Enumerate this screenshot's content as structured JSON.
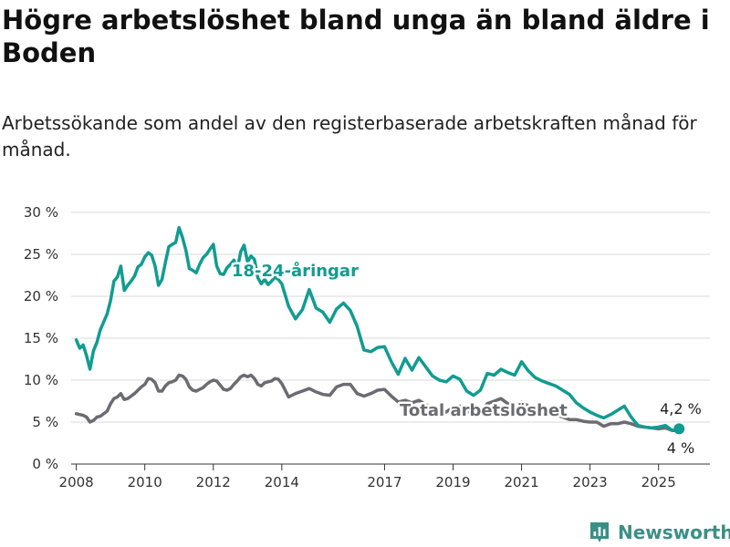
{
  "title": "Högre arbetslöshet bland unga än bland äldre i Boden",
  "subtitle": "Arbetssökande som andel av den registerbaserade arbetskraften månad för månad.",
  "logo_text": "Newsworthy",
  "colors": {
    "young": "#119c91",
    "total": "#6b6b72",
    "grid": "#d9d9d9",
    "logo": "#3a8f86"
  },
  "chart_data": {
    "type": "line",
    "title": "Högre arbetslöshet bland unga än bland äldre i Boden",
    "subtitle": "Arbetssökande som andel av den registerbaserade arbetskraften månad för månad.",
    "xlabel": "",
    "ylabel": "",
    "xlim": [
      2007.85,
      2026.5
    ],
    "ylim": [
      0,
      30
    ],
    "x_ticks": [
      2008,
      2010,
      2012,
      2014,
      2017,
      2019,
      2021,
      2023,
      2025
    ],
    "x_tick_labels": [
      "2008",
      "2010",
      "2012",
      "2014",
      "2017",
      "2019",
      "2021",
      "2023",
      "2025"
    ],
    "y_ticks": [
      0,
      5,
      10,
      15,
      20,
      25,
      30
    ],
    "y_tick_labels": [
      "0 %",
      "5 %",
      "10 %",
      "15 %",
      "20 %",
      "25 %",
      "30 %"
    ],
    "grid": "horizontal",
    "legend": "inline labels",
    "series": [
      {
        "name": "18-24-åringar",
        "x": [
          2008.0,
          2008.1,
          2008.2,
          2008.3,
          2008.4,
          2008.5,
          2008.6,
          2008.7,
          2008.9,
          2009.0,
          2009.1,
          2009.2,
          2009.3,
          2009.4,
          2009.5,
          2009.6,
          2009.7,
          2009.8,
          2009.9,
          2010.0,
          2010.1,
          2010.2,
          2010.3,
          2010.4,
          2010.5,
          2010.6,
          2010.7,
          2010.8,
          2010.9,
          2011.0,
          2011.1,
          2011.2,
          2011.3,
          2011.4,
          2011.5,
          2011.6,
          2011.7,
          2011.8,
          2011.9,
          2012.0,
          2012.1,
          2012.2,
          2012.3,
          2012.4,
          2012.5,
          2012.6,
          2012.7,
          2012.8,
          2012.9,
          2013.0,
          2013.1,
          2013.2,
          2013.3,
          2013.4,
          2013.5,
          2013.6,
          2013.7,
          2013.8,
          2013.9,
          2014.0,
          2014.2,
          2014.4,
          2014.6,
          2014.8,
          2015.0,
          2015.2,
          2015.4,
          2015.6,
          2015.8,
          2016.0,
          2016.2,
          2016.4,
          2016.6,
          2016.8,
          2017.0,
          2017.2,
          2017.4,
          2017.6,
          2017.8,
          2018.0,
          2018.2,
          2018.4,
          2018.6,
          2018.8,
          2019.0,
          2019.2,
          2019.4,
          2019.6,
          2019.8,
          2020.0,
          2020.2,
          2020.4,
          2020.6,
          2020.8,
          2021.0,
          2021.2,
          2021.4,
          2021.6,
          2021.8,
          2022.0,
          2022.2,
          2022.4,
          2022.6,
          2022.8,
          2023.0,
          2023.2,
          2023.4,
          2023.6,
          2023.8,
          2024.0,
          2024.2,
          2024.4,
          2024.6,
          2024.8,
          2025.0,
          2025.2,
          2025.4,
          2025.6
        ],
        "values": [
          14.8,
          13.8,
          14.2,
          12.9,
          11.3,
          13.5,
          14.5,
          16.0,
          17.9,
          19.5,
          21.8,
          22.3,
          23.6,
          20.7,
          21.3,
          21.8,
          22.4,
          23.5,
          23.8,
          24.7,
          25.2,
          24.9,
          23.6,
          21.3,
          22.0,
          24.0,
          25.9,
          26.2,
          26.4,
          28.2,
          27.0,
          25.5,
          23.3,
          23.1,
          22.8,
          23.8,
          24.6,
          25.0,
          25.6,
          26.2,
          23.6,
          22.7,
          22.6,
          23.4,
          23.8,
          24.3,
          23.2,
          25.3,
          26.1,
          24.1,
          24.8,
          24.4,
          22.2,
          21.5,
          22.0,
          21.4,
          21.8,
          22.3,
          22.0,
          21.5,
          18.8,
          17.3,
          18.4,
          20.8,
          18.6,
          18.1,
          16.9,
          18.5,
          19.2,
          18.3,
          16.4,
          13.6,
          13.4,
          13.9,
          14.0,
          12.2,
          10.7,
          12.6,
          11.2,
          12.7,
          11.6,
          10.5,
          10.0,
          9.8,
          10.5,
          10.1,
          8.7,
          8.2,
          8.8,
          10.8,
          10.6,
          11.3,
          10.9,
          10.6,
          12.2,
          11.1,
          10.3,
          9.9,
          9.6,
          9.3,
          8.8,
          8.3,
          7.3,
          6.7,
          6.2,
          5.8,
          5.5,
          5.9,
          6.4,
          6.9,
          5.6,
          4.6,
          4.4,
          4.3,
          4.4,
          4.6,
          4.0,
          4.2
        ]
      },
      {
        "name": "Total arbetslöshet",
        "x": [
          2008.0,
          2008.1,
          2008.2,
          2008.3,
          2008.4,
          2008.5,
          2008.6,
          2008.7,
          2008.9,
          2009.0,
          2009.1,
          2009.2,
          2009.3,
          2009.4,
          2009.5,
          2009.6,
          2009.7,
          2009.8,
          2009.9,
          2010.0,
          2010.1,
          2010.2,
          2010.3,
          2010.4,
          2010.5,
          2010.6,
          2010.7,
          2010.8,
          2010.9,
          2011.0,
          2011.1,
          2011.2,
          2011.3,
          2011.4,
          2011.5,
          2011.6,
          2011.7,
          2011.8,
          2011.9,
          2012.0,
          2012.1,
          2012.2,
          2012.3,
          2012.4,
          2012.5,
          2012.6,
          2012.7,
          2012.8,
          2012.9,
          2013.0,
          2013.1,
          2013.2,
          2013.3,
          2013.4,
          2013.5,
          2013.6,
          2013.7,
          2013.8,
          2013.9,
          2014.0,
          2014.2,
          2014.4,
          2014.6,
          2014.8,
          2015.0,
          2015.2,
          2015.4,
          2015.6,
          2015.8,
          2016.0,
          2016.2,
          2016.4,
          2016.6,
          2016.8,
          2017.0,
          2017.2,
          2017.4,
          2017.6,
          2017.8,
          2018.0,
          2018.2,
          2018.4,
          2018.6,
          2018.8,
          2019.0,
          2019.2,
          2019.4,
          2019.6,
          2019.8,
          2020.0,
          2020.2,
          2020.4,
          2020.6,
          2020.8,
          2021.0,
          2021.2,
          2021.4,
          2021.6,
          2021.8,
          2022.0,
          2022.2,
          2022.4,
          2022.6,
          2022.8,
          2023.0,
          2023.2,
          2023.4,
          2023.6,
          2023.8,
          2024.0,
          2024.2,
          2024.4,
          2024.6,
          2024.8,
          2025.0,
          2025.2,
          2025.4,
          2025.6
        ],
        "values": [
          6.0,
          5.9,
          5.8,
          5.6,
          5.0,
          5.2,
          5.6,
          5.7,
          6.3,
          7.2,
          7.8,
          8.0,
          8.4,
          7.7,
          7.8,
          8.1,
          8.4,
          8.8,
          9.2,
          9.5,
          10.2,
          10.1,
          9.7,
          8.7,
          8.7,
          9.3,
          9.7,
          9.8,
          10.0,
          10.6,
          10.5,
          10.1,
          9.2,
          8.8,
          8.7,
          8.9,
          9.1,
          9.5,
          9.8,
          10.0,
          9.9,
          9.4,
          8.9,
          8.8,
          9.0,
          9.5,
          9.9,
          10.4,
          10.6,
          10.4,
          10.6,
          10.2,
          9.5,
          9.3,
          9.7,
          9.8,
          9.9,
          10.2,
          10.1,
          9.6,
          8.0,
          8.4,
          8.7,
          9.0,
          8.6,
          8.3,
          8.2,
          9.2,
          9.5,
          9.5,
          8.4,
          8.1,
          8.4,
          8.8,
          8.9,
          8.1,
          7.4,
          7.6,
          7.3,
          7.6,
          7.1,
          6.6,
          6.3,
          6.2,
          6.8,
          6.9,
          6.3,
          6.0,
          6.2,
          7.2,
          7.5,
          7.8,
          7.2,
          6.9,
          7.4,
          6.9,
          6.5,
          6.3,
          6.1,
          5.9,
          5.6,
          5.3,
          5.3,
          5.1,
          5.0,
          5.0,
          4.5,
          4.8,
          4.8,
          5.0,
          4.8,
          4.5,
          4.4,
          4.3,
          4.2,
          4.3,
          4.0,
          4.0
        ]
      }
    ],
    "annotations": [
      {
        "series": "18-24-åringar",
        "text": "4,2 %",
        "x": 2025.6,
        "value": 4.2
      },
      {
        "series": "Total arbetslöshet",
        "text": "4 %",
        "x": 2025.6,
        "value": 4.0
      }
    ]
  }
}
